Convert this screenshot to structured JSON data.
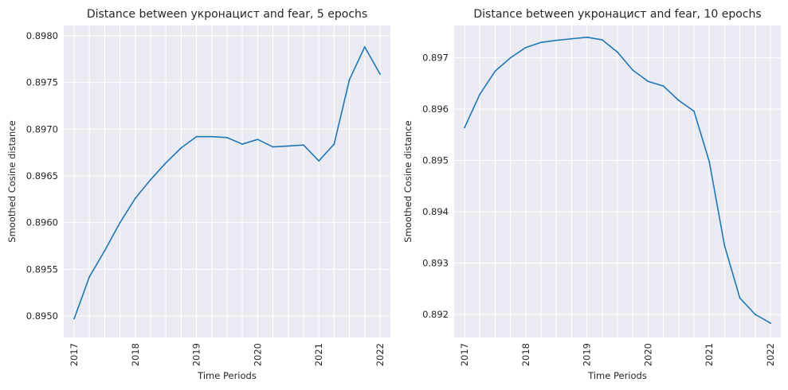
{
  "colors": {
    "background": "#ffffff",
    "plot_bg": "#eaeaf2",
    "grid": "#ffffff",
    "line": "#1f77b4",
    "text": "#262626"
  },
  "chart_data": [
    {
      "type": "line",
      "title": "Distance between укронацист and fear, 5 epochs",
      "xlabel": "Time Periods",
      "ylabel": "Smoothed Cosine distance",
      "xticks": [
        "2017",
        "2018",
        "2019",
        "2020",
        "2021",
        "2022"
      ],
      "yticks": [
        "0.8950",
        "0.8955",
        "0.8960",
        "0.8965",
        "0.8970",
        "0.8975",
        "0.8980"
      ],
      "xlim": [
        2016.83,
        2022.17
      ],
      "ylim": [
        0.89477,
        0.89811
      ],
      "grid": true,
      "series": [
        {
          "x": [
            2017.0,
            2017.25,
            2017.5,
            2017.75,
            2018.0,
            2018.25,
            2018.5,
            2018.75,
            2019.0,
            2019.25,
            2019.5,
            2019.75,
            2020.0,
            2020.25,
            2020.5,
            2020.75,
            2021.0,
            2021.25,
            2021.5,
            2021.75,
            2022.0
          ],
          "y": [
            0.89497,
            0.89542,
            0.8957,
            0.896,
            0.89626,
            0.89646,
            0.89664,
            0.8968,
            0.89692,
            0.89692,
            0.89691,
            0.89684,
            0.89689,
            0.89681,
            0.89682,
            0.89683,
            0.89666,
            0.89684,
            0.89753,
            0.89788,
            0.89759
          ]
        }
      ]
    },
    {
      "type": "line",
      "title": "Distance between укронацист and fear, 10 epochs",
      "xlabel": "Time Periods",
      "ylabel": "Smoothed Cosine distance",
      "xticks": [
        "2017",
        "2018",
        "2019",
        "2020",
        "2021",
        "2022"
      ],
      "yticks": [
        "0.892",
        "0.893",
        "0.894",
        "0.895",
        "0.896",
        "0.897"
      ],
      "xlim": [
        2016.83,
        2022.17
      ],
      "ylim": [
        0.89155,
        0.89763
      ],
      "grid": true,
      "series": [
        {
          "x": [
            2017.0,
            2017.25,
            2017.5,
            2017.75,
            2018.0,
            2018.25,
            2018.5,
            2018.75,
            2019.0,
            2019.25,
            2019.5,
            2019.75,
            2020.0,
            2020.25,
            2020.5,
            2020.75,
            2021.0,
            2021.25,
            2021.5,
            2021.75,
            2022.0
          ],
          "y": [
            0.89564,
            0.89629,
            0.89674,
            0.897,
            0.8972,
            0.8973,
            0.89734,
            0.89737,
            0.8974,
            0.89735,
            0.89711,
            0.89676,
            0.89654,
            0.89645,
            0.89617,
            0.89596,
            0.89498,
            0.89334,
            0.89232,
            0.892,
            0.89183
          ]
        }
      ]
    }
  ]
}
